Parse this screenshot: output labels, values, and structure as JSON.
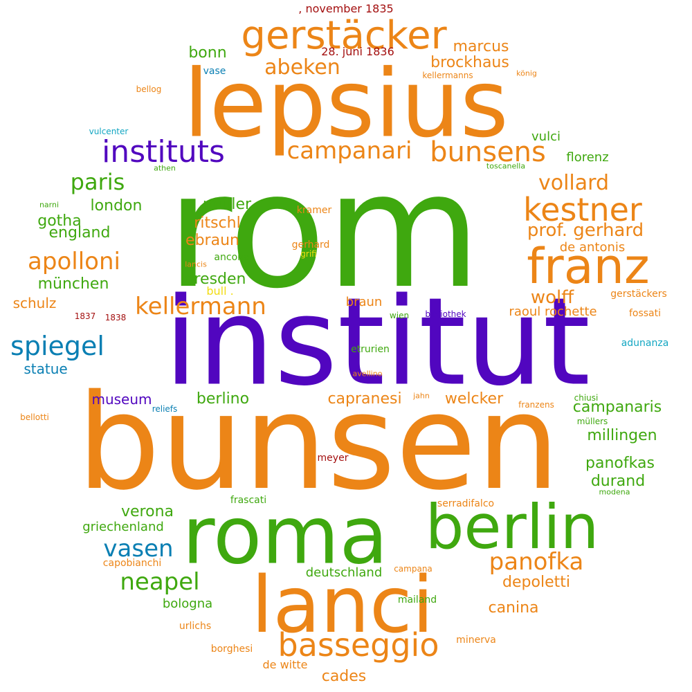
{
  "palette": {
    "orange": "#ec8517",
    "green": "#3fa80f",
    "purple": "#5106bf",
    "blue": "#0a7fb3",
    "red": "#a30f0f",
    "teal": "#12a6c2",
    "yellow": "#f2dc12"
  },
  "words": [
    {
      "text": "rom",
      "color": "green"
    },
    {
      "text": "institut",
      "color": "purple"
    },
    {
      "text": "bunsen",
      "color": "orange"
    },
    {
      "text": "lepsius",
      "color": "orange"
    },
    {
      "text": "roma",
      "color": "green"
    },
    {
      "text": "lanci",
      "color": "orange"
    },
    {
      "text": "berlin",
      "color": "green"
    },
    {
      "text": "franz",
      "color": "orange"
    },
    {
      "text": "gerstäcker",
      "color": "orange"
    },
    {
      "text": "kestner",
      "color": "orange"
    },
    {
      "text": "basseggio",
      "color": "orange"
    },
    {
      "text": "instituts",
      "color": "purple"
    },
    {
      "text": "bunsens",
      "color": "orange"
    },
    {
      "text": "campanari",
      "color": "orange"
    },
    {
      "text": "spiegel",
      "color": "blue"
    },
    {
      "text": "kellermann",
      "color": "orange"
    },
    {
      "text": "panofka",
      "color": "orange"
    },
    {
      "text": "apolloni",
      "color": "orange"
    },
    {
      "text": "neapel",
      "color": "green"
    },
    {
      "text": "vasen",
      "color": "blue"
    },
    {
      "text": "abeken",
      "color": "orange"
    },
    {
      "text": "paris",
      "color": "green"
    },
    {
      "text": "vollard",
      "color": "orange"
    },
    {
      "text": "prof. gerhard",
      "color": "orange"
    },
    {
      "text": "wolff",
      "color": "orange"
    },
    {
      "text": "brockhaus",
      "color": "orange"
    },
    {
      "text": "marcus",
      "color": "orange"
    },
    {
      "text": "bonn",
      "color": "green"
    },
    {
      "text": "london",
      "color": "green"
    },
    {
      "text": "müller",
      "color": "green"
    },
    {
      "text": "gotha",
      "color": "green"
    },
    {
      "text": "ritschl",
      "color": "orange"
    },
    {
      "text": "england",
      "color": "green"
    },
    {
      "text": "ebraun",
      "color": "orange"
    },
    {
      "text": "münchen",
      "color": "green"
    },
    {
      "text": "dresden",
      "color": "green"
    },
    {
      "text": "schulz",
      "color": "orange"
    },
    {
      "text": "statue",
      "color": "blue"
    },
    {
      "text": "museum",
      "color": "purple"
    },
    {
      "text": "berlino",
      "color": "green"
    },
    {
      "text": "capranesi",
      "color": "orange"
    },
    {
      "text": "welcker",
      "color": "orange"
    },
    {
      "text": "campanaris",
      "color": "green"
    },
    {
      "text": "millingen",
      "color": "green"
    },
    {
      "text": "panofkas",
      "color": "green"
    },
    {
      "text": "durand",
      "color": "green"
    },
    {
      "text": "verona",
      "color": "green"
    },
    {
      "text": "griechenland",
      "color": "green"
    },
    {
      "text": "deutschland",
      "color": "green"
    },
    {
      "text": "depoletti",
      "color": "orange"
    },
    {
      "text": "canina",
      "color": "orange"
    },
    {
      "text": "bologna",
      "color": "green"
    },
    {
      "text": "cades",
      "color": "orange"
    },
    {
      "text": "florenz",
      "color": "green"
    },
    {
      "text": "vulci",
      "color": "green"
    },
    {
      "text": "de antonis",
      "color": "orange"
    },
    {
      "text": "raoul rochette",
      "color": "orange"
    },
    {
      "text": "braun",
      "color": "orange"
    },
    {
      "text": ", november 1835",
      "color": "red"
    },
    {
      "text": "28. juni 1836",
      "color": "red"
    },
    {
      "text": "vase",
      "color": "blue"
    },
    {
      "text": "kellermanns",
      "color": "orange"
    },
    {
      "text": "könig",
      "color": "orange"
    },
    {
      "text": "bellog",
      "color": "orange"
    },
    {
      "text": "vulcenter",
      "color": "teal"
    },
    {
      "text": "athen",
      "color": "green"
    },
    {
      "text": "toscanella",
      "color": "green"
    },
    {
      "text": "narni",
      "color": "green"
    },
    {
      "text": "kramer",
      "color": "orange"
    },
    {
      "text": "ancona",
      "color": "green"
    },
    {
      "text": "gerhard",
      "color": "orange"
    },
    {
      "text": "grifi",
      "color": "yellow"
    },
    {
      "text": "lancis",
      "color": "orange"
    },
    {
      "text": "bull .",
      "color": "yellow"
    },
    {
      "text": "gerstäckers",
      "color": "orange"
    },
    {
      "text": "1837",
      "color": "red"
    },
    {
      "text": "1838",
      "color": "red"
    },
    {
      "text": "wien",
      "color": "green"
    },
    {
      "text": "bibliothek",
      "color": "purple"
    },
    {
      "text": "fossati",
      "color": "orange"
    },
    {
      "text": "adunanza",
      "color": "teal"
    },
    {
      "text": "etrurien",
      "color": "green"
    },
    {
      "text": "avellino",
      "color": "orange"
    },
    {
      "text": "jahn",
      "color": "orange"
    },
    {
      "text": "chiusi",
      "color": "green"
    },
    {
      "text": "reliefs",
      "color": "blue"
    },
    {
      "text": "franzens",
      "color": "orange"
    },
    {
      "text": "bellotti",
      "color": "orange"
    },
    {
      "text": "müllers",
      "color": "green"
    },
    {
      "text": "meyer",
      "color": "red"
    },
    {
      "text": "modena",
      "color": "green"
    },
    {
      "text": "frascati",
      "color": "green"
    },
    {
      "text": "serradifalco",
      "color": "orange"
    },
    {
      "text": "capobianchi",
      "color": "orange"
    },
    {
      "text": "campana",
      "color": "orange"
    },
    {
      "text": "mailand",
      "color": "green"
    },
    {
      "text": "urlichs",
      "color": "orange"
    },
    {
      "text": "minerva",
      "color": "orange"
    },
    {
      "text": "borghesi",
      "color": "orange"
    },
    {
      "text": "de witte",
      "color": "orange"
    }
  ]
}
